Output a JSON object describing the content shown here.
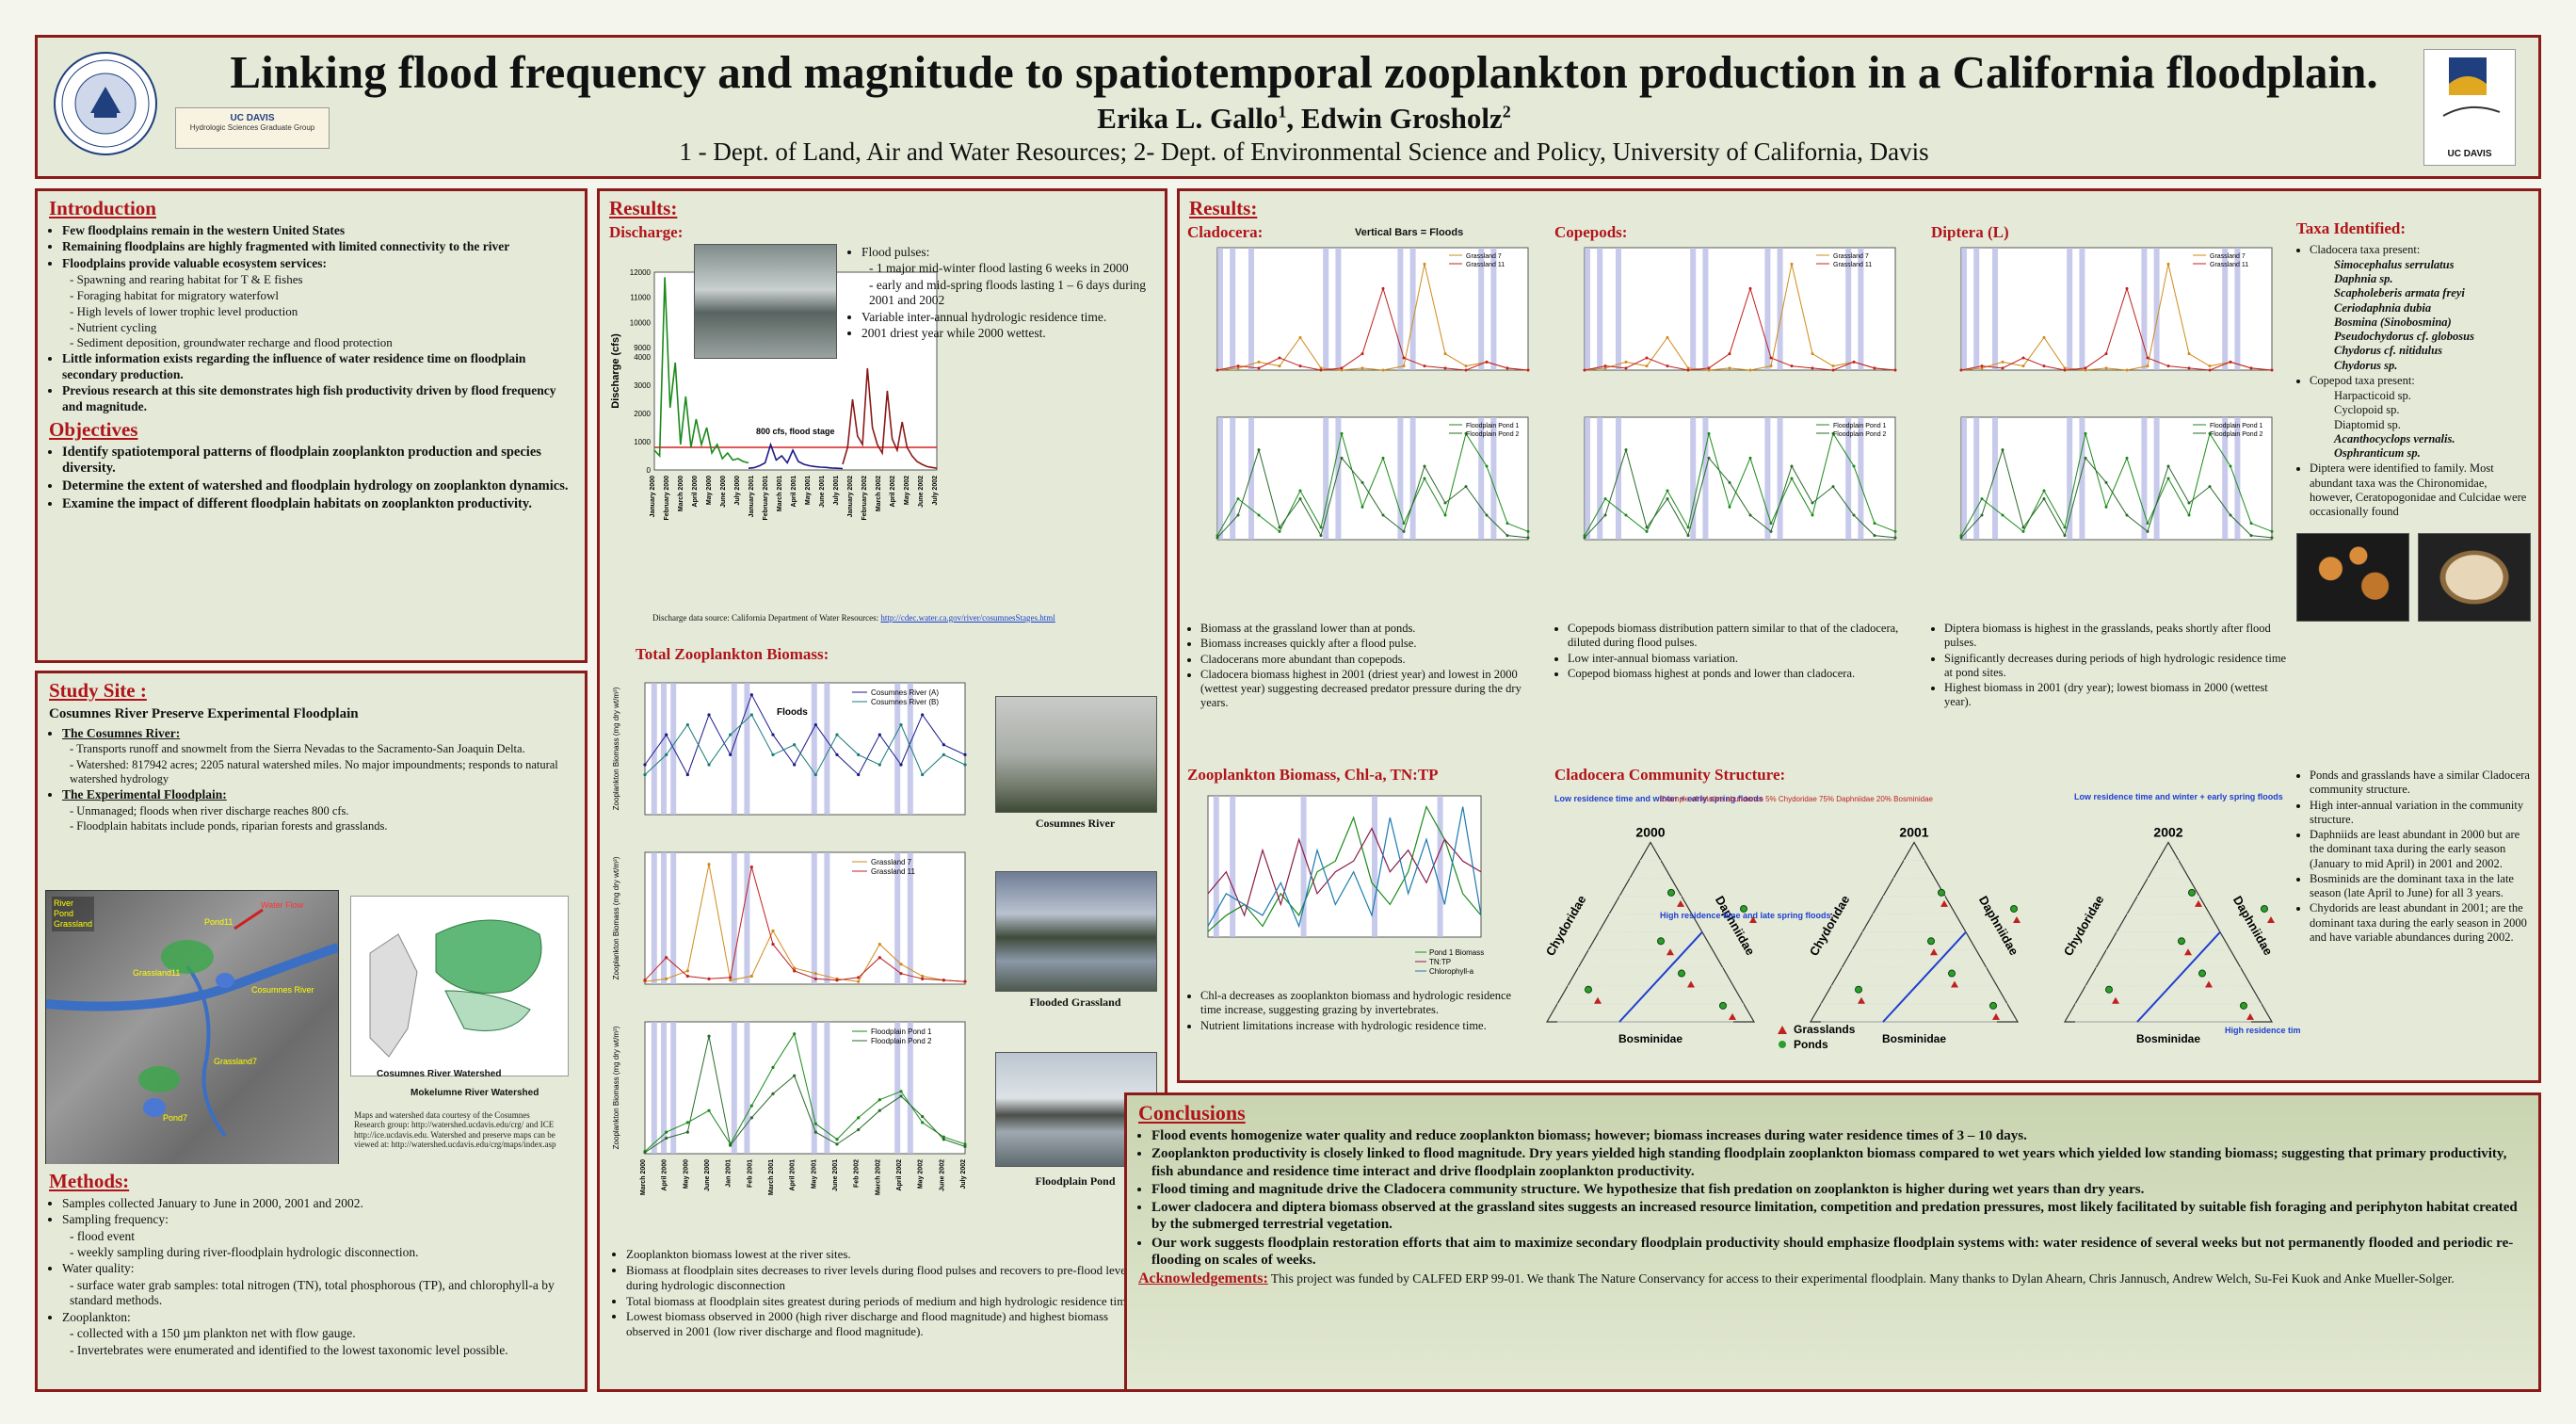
{
  "header": {
    "title": "Linking flood frequency and magnitude to spatiotemporal zooplankton production in a California floodplain.",
    "authors": "Erika L. Gallo",
    "authors_sup1": "1",
    "authors2": ", Edwin Grosholz",
    "authors_sup2": "2",
    "affiliations": "1 - Dept. of Land, Air and Water Resources; 2- Dept. of Environmental Science and Policy, University of California, Davis",
    "logo_left_text": "THE UNIVERSITY OF CALIFORNIA",
    "logo_hsgg_line1": "UC DAVIS",
    "logo_hsgg_line2": "Hydrologic Sciences Graduate Group",
    "logo_right_text": "UC DAVIS"
  },
  "introduction": {
    "title": "Introduction",
    "b1": "Few floodplains remain in the western United States",
    "b2": "Remaining floodplains are highly fragmented with limited connectivity to the river",
    "b3": "Floodplains provide valuable ecosystem services:",
    "s1": "Spawning and rearing habitat for T & E fishes",
    "s2": "Foraging habitat for migratory waterfowl",
    "s3": "High levels of lower trophic level production",
    "s4": "Nutrient cycling",
    "s5": "Sediment deposition, groundwater recharge and flood protection",
    "b4": "Little information exists regarding the influence of water residence time on floodplain secondary production.",
    "b5": "Previous research at this site demonstrates high fish productivity driven by flood frequency and magnitude."
  },
  "objectives": {
    "title": "Objectives",
    "o1": "Identify spatiotemporal patterns of floodplain zooplankton production and species diversity.",
    "o2": "Determine the extent of watershed and floodplain hydrology on zooplankton dynamics.",
    "o3": "Examine the impact of different floodplain habitats on zooplankton productivity."
  },
  "study": {
    "title": "Study Site :",
    "subtitle": "Cosumnes River Preserve Experimental Floodplain",
    "river_head": "The Cosumnes River:",
    "r1": "Transports runoff and snowmelt from  the Sierra Nevadas to the Sacramento-San Joaquin Delta.",
    "r2": "Watershed: 817942 acres; 2205 natural watershed miles. No major impoundments; responds to natural watershed hydrology",
    "fp_head": "The Experimental Floodplain:",
    "f1": "Unmanaged; floods when river discharge reaches 800 cfs.",
    "f2": "Floodplain habitats include ponds, riparian forests and grasslands.",
    "map_legend": [
      "River",
      "Pond",
      "Grassland"
    ],
    "map_labels": [
      "Pond11",
      "Grassland11",
      "Cosumnes River",
      "Grassland7",
      "Pond7",
      "Water Flow"
    ],
    "watershed1": "Cosumnes River Watershed",
    "watershed2": "Mokelumne River Watershed",
    "credit": "Maps and watershed data courtesy of the Cosumnes Research group: http://watershed.ucdavis.edu/crg/ and ICE http://ice.ucdavis.edu. Watershed and preserve maps can be viewed at: http://watershed.ucdavis.edu/crg/maps/index.asp"
  },
  "methods": {
    "title": "Methods:",
    "m1": "Samples collected January to June in 2000, 2001 and 2002.",
    "m2": "Sampling frequency:",
    "m2a": "flood event",
    "m2b": "weekly sampling during river-floodplain hydrologic disconnection.",
    "m3": "Water quality:",
    "m3a": "surface water grab samples: total nitrogen (TN), total phosphorous (TP), and chlorophyll-a by standard methods.",
    "m4": "Zooplankton:",
    "m4a": "collected with a 150 µm plankton net with flow gauge.",
    "m4b": "Invertebrates were enumerated and identified to the lowest taxonomic level possible."
  },
  "results1": {
    "title": "Results:",
    "discharge_title": "Discharge:",
    "p1": "Flood pulses:",
    "p1a": "1 major mid-winter flood lasting 6 weeks in 2000",
    "p1b": "early and mid-spring floods lasting 1 – 6 days during 2001 and 2002",
    "p2": "Variable inter-annual hydrologic residence time.",
    "p3": "2001 driest year while 2000 wettest.",
    "flood_stage": "800 cfs, flood stage",
    "source": "Discharge data source: California Department of Water Resources:",
    "source_url": "http://cdec.water.ca.gov/river/cosumnesStages.html",
    "total_title": "Total Zooplankton Biomass:",
    "floods_label": "Floods",
    "leg_river": [
      "Cosumnes River (A)",
      "Cosumnes River (B)"
    ],
    "leg_grass": [
      "Grassland 7",
      "Grassland 11"
    ],
    "leg_pond": [
      "Floodplain Pond 1",
      "Floodplain Pond 2"
    ],
    "photo1": "Cosumnes River",
    "photo2": "Flooded Grassland",
    "photo3": "Floodplain Pond",
    "t1": "Zooplankton biomass lowest at the river sites.",
    "t2": "Biomass at floodplain sites decreases to river levels during flood pulses and recovers to pre-flood levels during hydrologic disconnection",
    "t3": "Total biomass at floodplain sites greatest during periods of medium and high hydrologic residence time.",
    "t4": "Lowest biomass observed in 2000 (high river discharge and flood magnitude) and highest biomass observed in 2001 (low river discharge and flood magnitude)."
  },
  "results2": {
    "title": "Results:",
    "clad_title": "Cladocera:",
    "cope_title": "Copepods:",
    "dipt_title": "Diptera (L)",
    "vbars": "Vertical Bars = Floods",
    "leg_grass": [
      "Grassland 7",
      "Grassland 11"
    ],
    "leg_pond": [
      "Floodplain Pond 1",
      "Floodplain Pond 2"
    ],
    "c1": "Biomass at the grassland lower than at ponds.",
    "c2": "Biomass increases quickly after a flood pulse.",
    "c3": "Cladocerans more abundant than copepods.",
    "c4": "Cladocera biomass highest in 2001 (driest year) and lowest in 2000 (wettest year) suggesting decreased predator pressure during the dry years.",
    "cp1": "Copepods biomass distribution pattern similar to that of the cladocera, diluted during flood pulses.",
    "cp2": "Low inter-annual biomass variation.",
    "cp3": "Copepod biomass highest at ponds and lower than cladocera.",
    "d1": "Diptera biomass is highest in the grasslands, peaks shortly after flood pulses.",
    "d2": "Significantly decreases during periods of high hydrologic residence time at pond sites.",
    "d3": "Highest biomass in 2001 (dry year); lowest biomass in 2000 (wettest year).",
    "chl_title": "Zooplankton Biomass, Chl-a, TN:TP",
    "chl_leg": [
      "Pond 1 Biomass",
      "TN:TP",
      "Chlorophyll-a"
    ],
    "ch1": "Chl-a decreases as zooplankton biomass and hydrologic residence time increase, suggesting grazing by invertebrates.",
    "ch2": "Nutrient limitations increase with hydrologic residence time.",
    "comm_title": "Cladocera Community Structure:",
    "years": [
      "2000",
      "2001",
      "2002"
    ],
    "axes": [
      "Chydoridae",
      "Daphniidae",
      "Bosminidae"
    ],
    "ann1": "Low residence time and winter + early spring floods",
    "ann2": "High residence time and late spring floods",
    "ann3": "Low residence time and winter + early spring floods",
    "ann4": "High residence time",
    "example": "Example of relative abundance 5% Chydoridae 75% Daphniidae 20% Bosminidae",
    "leg_tri": [
      "Grasslands",
      "Ponds"
    ]
  },
  "taxa": {
    "title": "Taxa Identified:",
    "clad_head": "Cladocera taxa present:",
    "clad": [
      "Simocephalus serrulatus",
      "Daphnia sp.",
      "Scapholeberis armata freyi",
      "Ceriodaphnia dubia",
      "Bosmina (Sinobosmina)",
      "Pseudochydorus cf. globosus",
      "Chydorus cf. nitidulus",
      "Chydorus sp."
    ],
    "cope_head": "Copepod taxa present:",
    "cope": [
      "Harpacticoid sp.",
      "Cyclopoid sp.",
      "Diaptomid sp.",
      "Acanthocyclops vernalis.",
      "Osphranticum sp."
    ],
    "dipt": "Diptera were identified to family. Most abundant taxa was the Chironomidae, however, Ceratopogonidae and Culcidae were occasionally found",
    "r1": "Ponds and grasslands have a similar Cladocera community structure.",
    "r2": "High inter-annual variation in the community structure.",
    "r3": "Daphniids are least abundant in 2000 but are the dominant taxa during the early season (January to mid April) in 2001 and 2002.",
    "r4": "Bosminids are the dominant taxa in the late season (late April to June) for all 3 years.",
    "r5": "Chydorids are least abundant in 2001; are the dominant taxa during the early season in 2000 and have variable abundances during 2002."
  },
  "conclusions": {
    "title": "Conclusions",
    "c1": "Flood events homogenize water quality and reduce zooplankton biomass; however; biomass increases during water residence times of 3 – 10 days.",
    "c2": "Zooplankton productivity is closely linked to flood magnitude.  Dry years yielded high standing floodplain zooplankton biomass compared to wet years which yielded low standing biomass; suggesting that primary productivity, fish abundance and residence time interact and drive floodplain zooplankton productivity.",
    "c3": "Flood timing and magnitude drive the Cladocera community structure.  We hypothesize that fish predation on zooplankton is higher during wet years than dry years.",
    "c4": "Lower cladocera and diptera biomass observed at the grassland sites suggests an increased resource limitation, competition and predation pressures, most likely facilitated by suitable fish foraging and periphyton habitat created by the submerged terrestrial vegetation.",
    "c5": "Our work suggests floodplain restoration efforts that aim to maximize secondary floodplain productivity should emphasize floodplain systems with: water residence of several weeks but not permanently flooded and periodic re-flooding on scales of weeks.",
    "ack_title": "Acknowledgements:",
    "ack": "This project was funded by CALFED ERP 99-01.  We thank The Nature Conservancy for access to their experimental floodplain.  Many thanks to Dylan Ahearn, Chris Jannusch, Andrew Welch, Su-Fei Kuok and Anke Mueller-Solger."
  },
  "chart_data": [
    {
      "type": "line",
      "title": "Discharge:",
      "ylabel": "Discharge (cfs)",
      "yticks": [
        "0",
        "1000",
        "2000",
        "3000",
        "4000",
        "9000",
        "10000",
        "11000",
        "12000"
      ],
      "xticks": [
        "January 2000",
        "February 2000",
        "March 2000",
        "April 2000",
        "May 2000",
        "June 2000",
        "July 2000",
        "January 2001",
        "February 2001",
        "March 2001",
        "April 2001",
        "May 2001",
        "June 2001",
        "July 2001",
        "January 2002",
        "February 2002",
        "March 2002",
        "April 2002",
        "May 2002",
        "June 2002",
        "July 2002"
      ],
      "flood_stage": 800,
      "series": [
        {
          "name": "2000",
          "color": "#1a8a1a",
          "values": [
            700,
            500,
            11800,
            2200,
            3800,
            900,
            2600,
            800,
            1800,
            900,
            1500,
            600,
            900,
            400,
            600,
            350,
            400,
            300,
            250
          ]
        },
        {
          "name": "2001",
          "color": "#1a1a8a",
          "values": [
            60,
            80,
            150,
            250,
            900,
            350,
            500,
            250,
            700,
            300,
            200,
            150,
            120,
            100,
            90,
            70,
            60,
            50
          ]
        },
        {
          "name": "2002",
          "color": "#8a1a1a",
          "values": [
            200,
            800,
            2500,
            1200,
            900,
            3600,
            1500,
            900,
            600,
            2800,
            1100,
            700,
            1700,
            800,
            500,
            300,
            200,
            120,
            90,
            60
          ]
        }
      ]
    },
    {
      "type": "line",
      "title": "Total Zooplankton Biomass:",
      "ylabel": "Zooplankton Biomass (mg dry wt/m³)",
      "xticks": [
        "March 2000",
        "April 2000",
        "May 2000",
        "June 2000",
        "Jan 2001",
        "Feb 2001",
        "March 2001",
        "April 2001",
        "May 2001",
        "June 2001",
        "Feb 2002",
        "March 2002",
        "April 2002",
        "May 2002",
        "June 2002",
        "July 2002"
      ],
      "panels": [
        {
          "series": [
            {
              "name": "Cosumnes River (A)",
              "values": [
                5,
                8,
                4,
                10,
                6,
                12,
                8,
                5,
                9,
                6,
                4,
                8,
                5,
                10,
                7,
                6
              ]
            },
            {
              "name": "Cosumnes River (B)",
              "values": [
                4,
                6,
                9,
                5,
                8,
                10,
                6,
                7,
                4,
                8,
                6,
                5,
                9,
                4,
                6,
                5
              ]
            }
          ]
        },
        {
          "series": [
            {
              "name": "Grassland 7",
              "values": [
                20,
                40,
                100,
                900,
                30,
                60,
                400,
                120,
                80,
                40,
                20,
                300,
                150,
                60,
                30,
                20
              ]
            },
            {
              "name": "Grassland 11",
              "values": [
                30,
                200,
                60,
                40,
                50,
                880,
                300,
                100,
                40,
                30,
                50,
                200,
                80,
                40,
                30,
                20
              ]
            }
          ]
        },
        {
          "series": [
            {
              "name": "Floodplain Pond 1",
              "values": [
                200,
                1800,
                2600,
                3600,
                800,
                4000,
                7200,
                10000,
                2500,
                1200,
                3000,
                4500,
                5200,
                2600,
                1400,
                800
              ]
            },
            {
              "name": "Floodplain Pond 2",
              "values": [
                100,
                1300,
                1800,
                9800,
                700,
                3000,
                5000,
                6500,
                1800,
                800,
                2000,
                3600,
                4800,
                3100,
                1200,
                600
              ]
            }
          ]
        }
      ]
    }
  ]
}
